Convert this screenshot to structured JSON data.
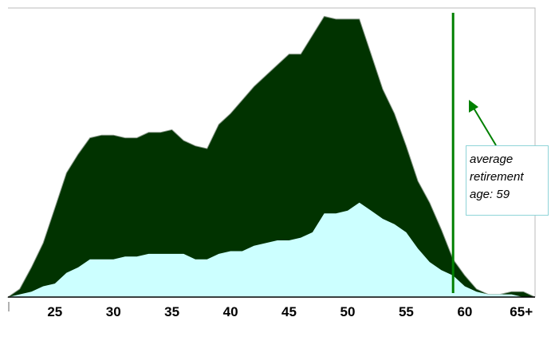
{
  "chart_data": {
    "type": "area",
    "title": "",
    "xlabel": "",
    "ylabel": "",
    "x_ticks": [
      "25",
      "30",
      "35",
      "40",
      "45",
      "50",
      "55",
      "60",
      "65+"
    ],
    "xlim": [
      21,
      66
    ],
    "ylim": [
      0,
      100
    ],
    "grid": false,
    "series": [
      {
        "color": "#013300",
        "x": [
          21,
          22,
          23,
          24,
          25,
          26,
          27,
          28,
          29,
          30,
          31,
          32,
          33,
          34,
          35,
          36,
          37,
          38,
          39,
          40,
          41,
          42,
          43,
          44,
          45,
          46,
          47,
          48,
          49,
          50,
          51,
          52,
          53,
          54,
          55,
          56,
          57,
          58,
          59,
          60,
          61,
          62,
          63,
          64,
          65,
          66
        ],
        "values": [
          0,
          3,
          11,
          20,
          33,
          46,
          53,
          59,
          60,
          60,
          59,
          59,
          61,
          61,
          62,
          58,
          56,
          55,
          64,
          68,
          73,
          78,
          82,
          86,
          90,
          90,
          97,
          104,
          103,
          103,
          103,
          90,
          77,
          68,
          56,
          43,
          35,
          25,
          14,
          8,
          3,
          1,
          1,
          2,
          2,
          0
        ]
      },
      {
        "color": "#ccffff",
        "x": [
          21,
          22,
          23,
          24,
          25,
          26,
          27,
          28,
          29,
          30,
          31,
          32,
          33,
          34,
          35,
          36,
          37,
          38,
          39,
          40,
          41,
          42,
          43,
          44,
          45,
          46,
          47,
          48,
          49,
          50,
          51,
          52,
          53,
          54,
          55,
          56,
          57,
          58,
          59,
          60,
          61,
          62,
          63,
          64,
          65,
          66
        ],
        "values": [
          0,
          1,
          2,
          4,
          5,
          9,
          11,
          14,
          14,
          14,
          15,
          15,
          16,
          16,
          16,
          16,
          14,
          14,
          16,
          17,
          17,
          19,
          20,
          21,
          21,
          22,
          24,
          31,
          31,
          32,
          35,
          32,
          29,
          27,
          24,
          18,
          13,
          10,
          8,
          4,
          2,
          1,
          1,
          1,
          0,
          0
        ]
      }
    ],
    "annotation": {
      "x": 59,
      "lines": [
        "average",
        "retirement",
        "age: 59"
      ],
      "line_color": "#008000"
    },
    "frame_color": "#bbbbbb",
    "baseline_color": "#000000"
  }
}
